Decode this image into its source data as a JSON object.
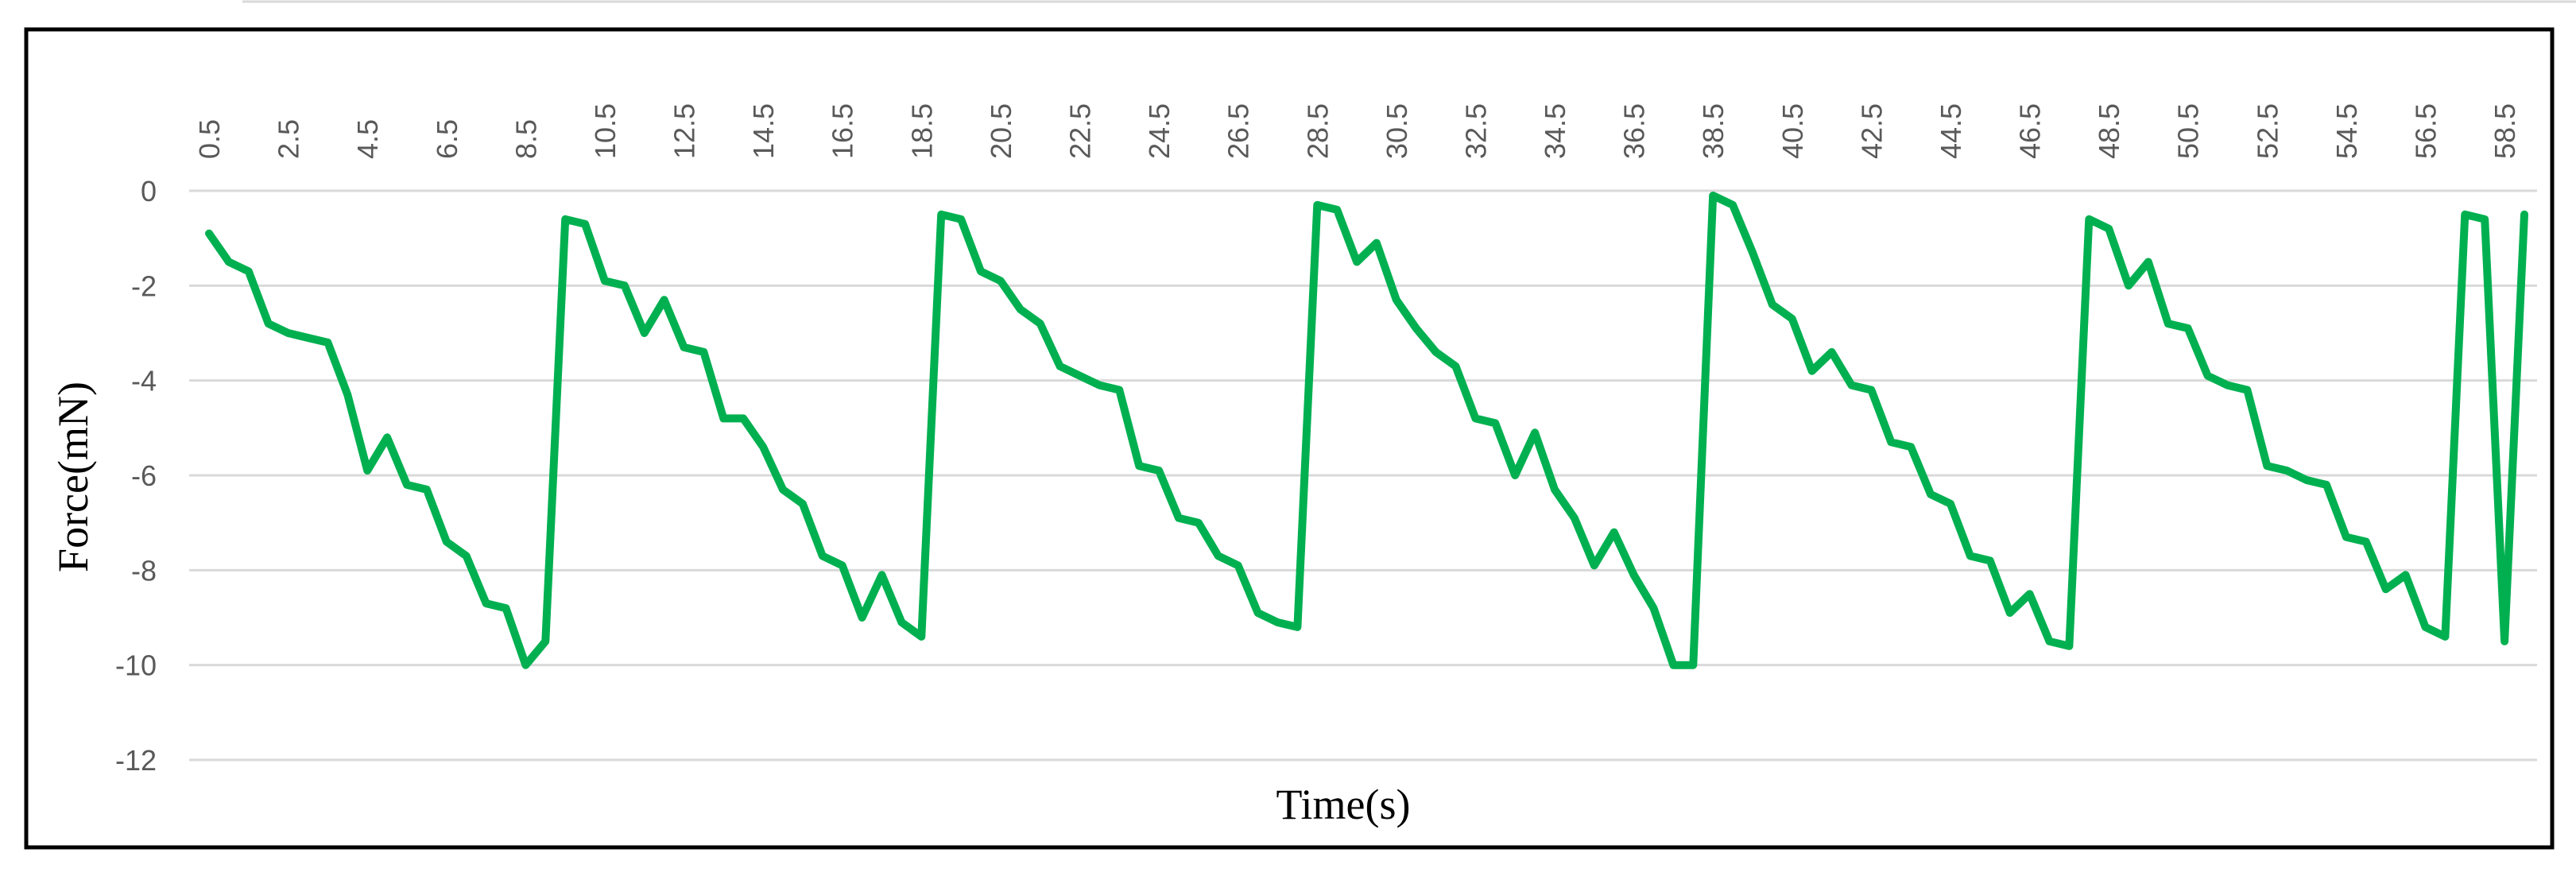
{
  "chart_data": {
    "type": "line",
    "x_label": "Time(s)",
    "y_label": "Force(mN)",
    "categories": [
      "0.5",
      null,
      null,
      null,
      "2.5",
      null,
      null,
      null,
      "4.5",
      null,
      null,
      null,
      "6.5",
      null,
      null,
      null,
      "8.5",
      null,
      null,
      null,
      "10.5",
      null,
      null,
      null,
      "12.5",
      null,
      null,
      null,
      "14.5",
      null,
      null,
      null,
      "16.5",
      null,
      null,
      null,
      "18.5",
      null,
      null,
      null,
      "20.5",
      null,
      null,
      null,
      "22.5",
      null,
      null,
      null,
      "24.5",
      null,
      null,
      null,
      "26.5",
      null,
      null,
      null,
      "28.5",
      null,
      null,
      null,
      "30.5",
      null,
      null,
      null,
      "32.5",
      null,
      null,
      null,
      "34.5",
      null,
      null,
      null,
      "36.5",
      null,
      null,
      null,
      "38.5",
      null,
      null,
      null,
      "40.5",
      null,
      null,
      null,
      "42.5",
      null,
      null,
      null,
      "44.5",
      null,
      null,
      null,
      "46.5",
      null,
      null,
      null,
      "48.5",
      null,
      null,
      null,
      "50.5",
      null,
      null,
      null,
      "52.5",
      null,
      null,
      null,
      "54.5",
      null,
      null,
      null,
      "56.5",
      null,
      null,
      null,
      "58.5",
      null
    ],
    "values": [
      -0.9,
      -1.5,
      -1.7,
      -2.8,
      -3.0,
      -3.1,
      -3.2,
      -4.3,
      -5.9,
      -5.2,
      -6.2,
      -6.3,
      -7.4,
      -7.7,
      -8.7,
      -8.8,
      -10.0,
      -9.5,
      -0.6,
      -0.7,
      -1.9,
      -2.0,
      -3.0,
      -2.3,
      -3.3,
      -3.4,
      -4.8,
      -4.8,
      -5.4,
      -6.3,
      -6.6,
      -7.7,
      -7.9,
      -9.0,
      -8.1,
      -9.1,
      -9.4,
      -0.5,
      -0.6,
      -1.7,
      -1.9,
      -2.5,
      -2.8,
      -3.7,
      -3.9,
      -4.1,
      -4.2,
      -5.8,
      -5.9,
      -6.9,
      -7.0,
      -7.7,
      -7.9,
      -8.9,
      -9.1,
      -9.2,
      -0.3,
      -0.4,
      -1.5,
      -1.1,
      -2.3,
      -2.9,
      -3.4,
      -3.7,
      -4.8,
      -4.9,
      -6.0,
      -5.1,
      -6.3,
      -6.9,
      -7.9,
      -7.2,
      -8.1,
      -8.8,
      -10.0,
      -10.0,
      -0.1,
      -0.3,
      -1.3,
      -2.4,
      -2.7,
      -3.8,
      -3.4,
      -4.1,
      -4.2,
      -5.3,
      -5.4,
      -6.4,
      -6.6,
      -7.7,
      -7.8,
      -8.9,
      -8.5,
      -9.5,
      -9.6,
      -0.6,
      -0.8,
      -2.0,
      -1.5,
      -2.8,
      -2.9,
      -3.9,
      -4.1,
      -4.2,
      -5.8,
      -5.9,
      -6.1,
      -6.2,
      -7.3,
      -7.4,
      -8.4,
      -8.1,
      -9.2,
      -9.4,
      -0.5,
      -0.6,
      -9.5,
      -0.5
    ],
    "color": "#00b050",
    "ylim": [
      -12,
      0
    ],
    "yticks": [
      0,
      -2,
      -4,
      -6,
      -8,
      -10,
      -12
    ],
    "grid": true
  }
}
